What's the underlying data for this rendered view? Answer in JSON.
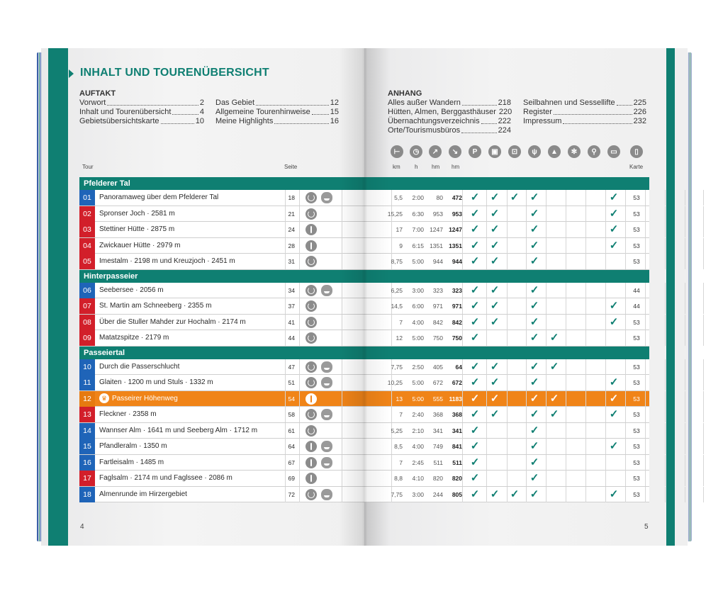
{
  "title": "INHALT UND TOURENÜBERSICHT",
  "toc": {
    "auftakt_head": "AUFTAKT",
    "auftakt_col1": [
      {
        "label": "Vorwort",
        "page": "2"
      },
      {
        "label": "Inhalt und Tourenübersicht",
        "page": "4"
      },
      {
        "label": "Gebietsübersichtskarte",
        "page": "10"
      }
    ],
    "auftakt_col2": [
      {
        "label": "Das Gebiet",
        "page": "12"
      },
      {
        "label": "Allgemeine Tourenhinweise",
        "page": "15"
      },
      {
        "label": "Meine Highlights",
        "page": "16"
      }
    ],
    "anhang_head": "ANHANG",
    "anhang_col1": [
      {
        "label": "Alles außer Wandern",
        "page": "218"
      },
      {
        "label": "Hütten, Almen, Berggasthäuser",
        "page": "220"
      },
      {
        "label": "Übernachtungsverzeichnis",
        "page": "222"
      },
      {
        "label": "Orte/Tourismusbüros",
        "page": "224"
      }
    ],
    "anhang_col2": [
      {
        "label": "Seilbahnen und Sessellifte",
        "page": "225"
      },
      {
        "label": "Register",
        "page": "226"
      },
      {
        "label": "Impressum",
        "page": "232"
      }
    ]
  },
  "columns": {
    "tour": "Tour",
    "seite": "Seite",
    "km": "km",
    "h": "h",
    "hm1": "hm",
    "hm2": "hm",
    "karte": "Karte",
    "icons": [
      "signpost-icon",
      "clock-icon",
      "ascent-icon",
      "descent-icon",
      "parking-icon",
      "bus-icon",
      "cablecar-icon",
      "restaurant-icon",
      "summit-icon",
      "snowflake-icon",
      "bike-icon",
      "bed-icon",
      "map-icon"
    ],
    "icon_glyphs": [
      "⊢",
      "◷",
      "↗",
      "↘",
      "P",
      "▣",
      "⊡",
      "ψ",
      "▲",
      "✻",
      "⚲",
      "▭",
      "▯"
    ]
  },
  "sections": [
    {
      "name": "Pfelderer Tal",
      "tours": [
        {
          "no": "01",
          "color": "blue",
          "name": "Panoramaweg über dem Pfelderer Tal",
          "page": "18",
          "icons": [
            "circle",
            "bear"
          ],
          "km": "5,5",
          "h": "2:00",
          "up": "80",
          "down": "472",
          "checks": [
            1,
            1,
            1,
            1,
            0,
            0,
            0,
            0,
            1
          ],
          "karte": "53"
        },
        {
          "no": "02",
          "color": "red",
          "name": "Spronser Joch · 2581 m",
          "page": "21",
          "icons": [
            "circle"
          ],
          "km": "15,25",
          "h": "6:30",
          "up": "953",
          "down": "953",
          "checks": [
            1,
            1,
            0,
            1,
            0,
            0,
            0,
            0,
            1
          ],
          "karte": "53"
        },
        {
          "no": "03",
          "color": "red",
          "name": "Stettiner Hütte · 2875 m",
          "page": "24",
          "icons": [
            "wave"
          ],
          "km": "17",
          "h": "7:00",
          "up": "1247",
          "down": "1247",
          "checks": [
            1,
            1,
            0,
            1,
            0,
            0,
            0,
            0,
            1
          ],
          "karte": "53"
        },
        {
          "no": "04",
          "color": "red",
          "name": "Zwickauer Hütte · 2979 m",
          "page": "28",
          "icons": [
            "wave"
          ],
          "km": "9",
          "h": "6:15",
          "up": "1351",
          "down": "1351",
          "checks": [
            1,
            1,
            0,
            1,
            0,
            0,
            0,
            0,
            1
          ],
          "karte": "53"
        },
        {
          "no": "05",
          "color": "red",
          "name": "Imestalm · 2198 m und Kreuzjoch · 2451 m",
          "page": "31",
          "icons": [
            "circle"
          ],
          "km": "8,75",
          "h": "5:00",
          "up": "944",
          "down": "944",
          "checks": [
            1,
            1,
            0,
            1,
            0,
            0,
            0,
            0,
            0
          ],
          "karte": "53"
        }
      ]
    },
    {
      "name": "Hinterpasseier",
      "tours": [
        {
          "no": "06",
          "color": "blue",
          "name": "Seebersee · 2056 m",
          "page": "34",
          "icons": [
            "circle",
            "bear"
          ],
          "km": "6,25",
          "h": "3:00",
          "up": "323",
          "down": "323",
          "checks": [
            1,
            1,
            0,
            1,
            0,
            0,
            0,
            0,
            0
          ],
          "karte": "44"
        },
        {
          "no": "07",
          "color": "red",
          "name": "St. Martin am Schneeberg · 2355 m",
          "page": "37",
          "icons": [
            "circle"
          ],
          "km": "14,5",
          "h": "6:00",
          "up": "971",
          "down": "971",
          "checks": [
            1,
            1,
            0,
            1,
            0,
            0,
            0,
            0,
            1
          ],
          "karte": "44"
        },
        {
          "no": "08",
          "color": "red",
          "name": "Über die Stuller Mahder zur Hochalm · 2174 m",
          "page": "41",
          "icons": [
            "circle"
          ],
          "km": "7",
          "h": "4:00",
          "up": "842",
          "down": "842",
          "checks": [
            1,
            1,
            0,
            1,
            0,
            0,
            0,
            0,
            1
          ],
          "karte": "53"
        },
        {
          "no": "09",
          "color": "red",
          "name": "Matatzspitze · 2179 m",
          "page": "44",
          "icons": [
            "circle"
          ],
          "km": "12",
          "h": "5:00",
          "up": "750",
          "down": "750",
          "checks": [
            1,
            0,
            0,
            1,
            1,
            0,
            0,
            0,
            0
          ],
          "karte": "53"
        }
      ]
    },
    {
      "name": "Passeiertal",
      "tours": [
        {
          "no": "10",
          "color": "blue",
          "name": "Durch die Passerschlucht",
          "page": "47",
          "icons": [
            "circle",
            "bear"
          ],
          "km": "7,75",
          "h": "2:50",
          "up": "405",
          "down": "64",
          "checks": [
            1,
            1,
            0,
            1,
            1,
            0,
            0,
            0,
            0
          ],
          "karte": "53"
        },
        {
          "no": "11",
          "color": "blue",
          "name": "Glaiten · 1200 m und Stuls · 1332 m",
          "page": "51",
          "icons": [
            "circle",
            "bear"
          ],
          "km": "10,25",
          "h": "5:00",
          "up": "672",
          "down": "672",
          "checks": [
            1,
            1,
            0,
            1,
            0,
            0,
            0,
            0,
            1
          ],
          "karte": "53"
        },
        {
          "no": "12",
          "color": "orange",
          "highlight": true,
          "name": "Passeirer Höhenweg",
          "page": "54",
          "icons": [
            "wave"
          ],
          "km": "13",
          "h": "5:00",
          "up": "555",
          "down": "1183",
          "checks": [
            1,
            1,
            0,
            1,
            1,
            0,
            0,
            0,
            1
          ],
          "karte": "53"
        },
        {
          "no": "13",
          "color": "red",
          "name": "Fleckner · 2358 m",
          "page": "58",
          "icons": [
            "circle",
            "bear"
          ],
          "km": "7",
          "h": "2:40",
          "up": "368",
          "down": "368",
          "checks": [
            1,
            1,
            0,
            1,
            1,
            0,
            0,
            0,
            1
          ],
          "karte": "53"
        },
        {
          "no": "14",
          "color": "blue",
          "name": "Wannser Alm · 1641 m und Seeberg Alm · 1712 m",
          "page": "61",
          "icons": [
            "circle"
          ],
          "km": "5,25",
          "h": "2:10",
          "up": "341",
          "down": "341",
          "checks": [
            1,
            0,
            0,
            1,
            0,
            0,
            0,
            0,
            0
          ],
          "karte": "53"
        },
        {
          "no": "15",
          "color": "blue",
          "name": "Pfandleralm · 1350 m",
          "page": "64",
          "icons": [
            "wave",
            "bear"
          ],
          "km": "8,5",
          "h": "4:00",
          "up": "749",
          "down": "841",
          "checks": [
            1,
            0,
            0,
            1,
            0,
            0,
            0,
            0,
            1
          ],
          "karte": "53"
        },
        {
          "no": "16",
          "color": "blue",
          "name": "Fartleisalm · 1485 m",
          "page": "67",
          "icons": [
            "wave",
            "bear"
          ],
          "km": "7",
          "h": "2:45",
          "up": "511",
          "down": "511",
          "checks": [
            1,
            0,
            0,
            1,
            0,
            0,
            0,
            0,
            0
          ],
          "karte": "53"
        },
        {
          "no": "17",
          "color": "red",
          "name": "Faglsalm · 2174 m und Faglssee · 2086 m",
          "page": "69",
          "icons": [
            "wave"
          ],
          "km": "8,8",
          "h": "4:10",
          "up": "820",
          "down": "820",
          "checks": [
            1,
            0,
            0,
            1,
            0,
            0,
            0,
            0,
            0
          ],
          "karte": "53"
        },
        {
          "no": "18",
          "color": "blue",
          "name": "Almenrunde im Hirzergebiet",
          "page": "72",
          "icons": [
            "circle",
            "bear"
          ],
          "km": "7,75",
          "h": "3:00",
          "up": "244",
          "down": "805",
          "checks": [
            1,
            1,
            1,
            1,
            0,
            0,
            0,
            0,
            1
          ],
          "karte": "53"
        }
      ]
    }
  ],
  "check_glyph": "✓",
  "page_left": "4",
  "page_right": "5",
  "colors": {
    "teal": "#0f7f72",
    "blue": "#1f64b8",
    "red": "#d21f2a",
    "orange": "#f08418"
  }
}
